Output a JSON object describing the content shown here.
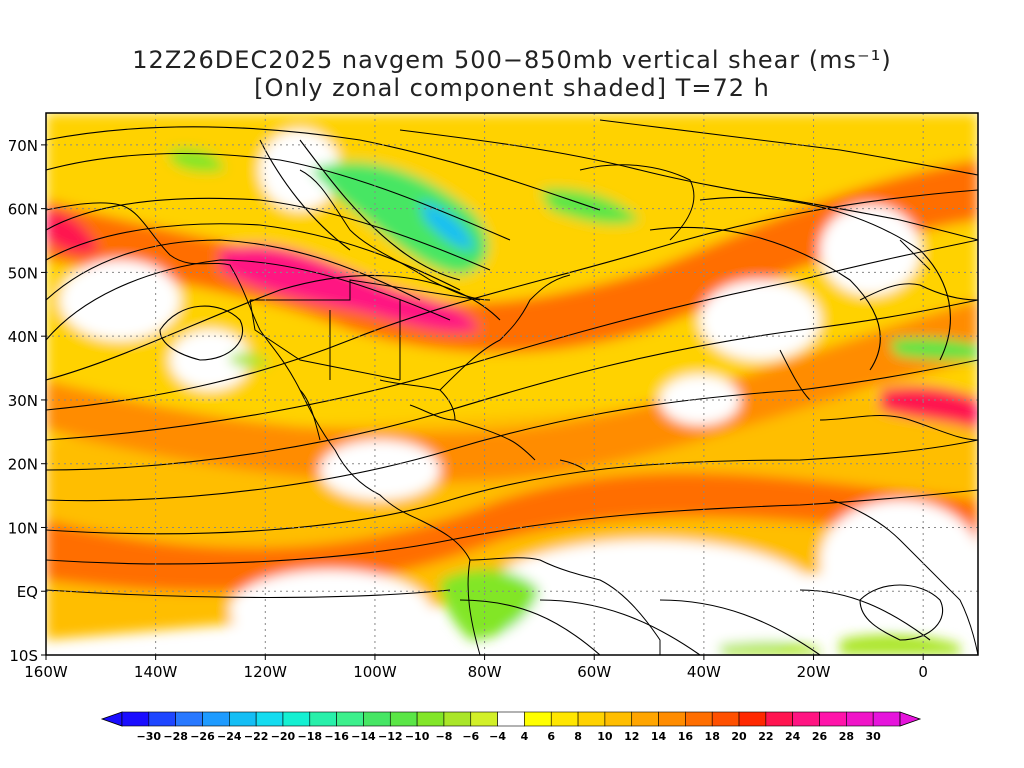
{
  "title": {
    "line1": "12Z26DEC2025 navgem 500−850mb vertical shear (ms⁻¹)",
    "line2": "[Only zonal component shaded] T=72 h"
  },
  "axes": {
    "lat_labels": [
      "70N",
      "60N",
      "50N",
      "40N",
      "30N",
      "20N",
      "10N",
      "EQ",
      "10S"
    ],
    "lat_values": [
      70,
      60,
      50,
      40,
      30,
      20,
      10,
      0,
      -10
    ],
    "lon_labels": [
      "160W",
      "140W",
      "120W",
      "100W",
      "80W",
      "60W",
      "40W",
      "20W",
      "0"
    ],
    "lon_values": [
      -160,
      -140,
      -120,
      -100,
      -80,
      -60,
      -40,
      -20,
      0
    ],
    "lat_range": [
      -10,
      75
    ],
    "lon_range": [
      -160,
      10
    ],
    "grid": "dotted"
  },
  "colorbar": {
    "labels": [
      "-30",
      "-28",
      "-26",
      "-24",
      "-22",
      "-20",
      "-18",
      "-16",
      "-14",
      "-12",
      "-10",
      "-8",
      "-6",
      "-4",
      "4",
      "6",
      "8",
      "10",
      "12",
      "14",
      "16",
      "18",
      "20",
      "22",
      "24",
      "26",
      "28",
      "30"
    ],
    "colors": [
      "#1a0dff",
      "#1e46ff",
      "#2878ff",
      "#1e9bff",
      "#14bef5",
      "#14dcf0",
      "#14f0d2",
      "#28f0aa",
      "#3cf08c",
      "#46e664",
      "#5ae646",
      "#82e628",
      "#aae628",
      "#d2f028",
      "#ffffff",
      "#ffff00",
      "#ffe600",
      "#ffd200",
      "#ffbe00",
      "#ffa500",
      "#ff8c00",
      "#ff6e00",
      "#ff5000",
      "#ff2800",
      "#ff1450",
      "#ff1482",
      "#ff14aa",
      "#f014c8",
      "#e614dc"
    ]
  },
  "colors": {
    "positive_low": "#ffff00",
    "positive_mid": "#ff8c00",
    "positive_high": "#ff1482",
    "negative": "#46e664",
    "streamline": "#000000",
    "coastline": "#000000"
  }
}
